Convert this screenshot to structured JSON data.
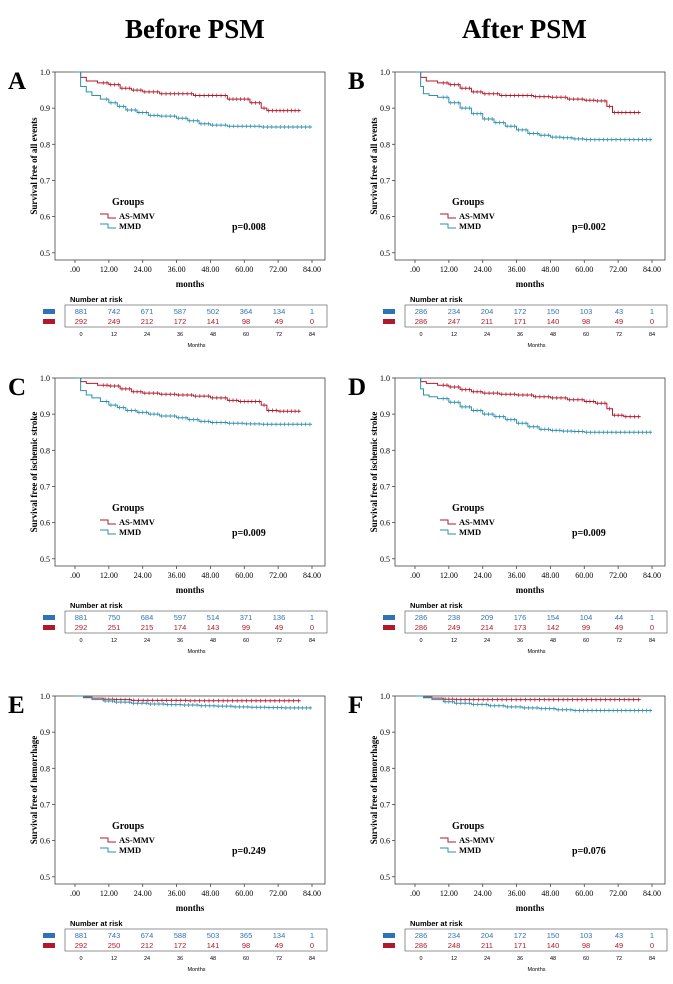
{
  "headers": {
    "before": "Before PSM",
    "after": "After PSM"
  },
  "colors": {
    "as_mmv": "#b2182b",
    "mmd": "#2e8fae",
    "risk_blue": "#2f73b7",
    "risk_red": "#b2182b"
  },
  "risk_table": {
    "title": "Number at risk",
    "xlabel": "Months",
    "times": [
      "0",
      "12",
      "24",
      "36",
      "48",
      "60",
      "72",
      "84"
    ]
  },
  "chart_data": [
    {
      "panel": "A",
      "type": "line",
      "ylabel": "Survival free of all events",
      "xlabel": "months",
      "xticks": [
        ".00",
        "12.00",
        "24.00",
        "36.00",
        "48.00",
        "60.00",
        "72.00",
        "84.00"
      ],
      "yticks": [
        "0.5",
        "0.6",
        "0.7",
        "0.8",
        "0.9",
        "1.0"
      ],
      "ylim": [
        0.48,
        1.0
      ],
      "xlim": [
        0,
        84
      ],
      "legend_title": "Groups",
      "pvalue": "p=0.008",
      "series": [
        {
          "name": "AS-MMV",
          "color": "#b2182b",
          "x": [
            0,
            2,
            4,
            8,
            12,
            16,
            20,
            24,
            30,
            36,
            42,
            48,
            54,
            58,
            62,
            66,
            68,
            72,
            76,
            80
          ],
          "y": [
            1.0,
            0.985,
            0.975,
            0.97,
            0.965,
            0.955,
            0.95,
            0.945,
            0.94,
            0.94,
            0.935,
            0.935,
            0.925,
            0.925,
            0.915,
            0.9,
            0.893,
            0.893,
            0.893,
            0.893
          ]
        },
        {
          "name": "MMD",
          "color": "#2e8fae",
          "x": [
            0,
            2,
            4,
            6,
            9,
            12,
            15,
            18,
            22,
            26,
            30,
            36,
            40,
            44,
            48,
            54,
            60,
            66,
            72,
            78,
            84
          ],
          "y": [
            1.0,
            0.96,
            0.945,
            0.935,
            0.925,
            0.915,
            0.905,
            0.895,
            0.888,
            0.88,
            0.878,
            0.872,
            0.865,
            0.857,
            0.853,
            0.85,
            0.85,
            0.848,
            0.848,
            0.848,
            0.848
          ]
        }
      ],
      "risk": {
        "blue": [
          "881",
          "742",
          "671",
          "587",
          "502",
          "364",
          "134",
          "1"
        ],
        "red": [
          "292",
          "249",
          "212",
          "172",
          "141",
          "98",
          "49",
          "0"
        ]
      }
    },
    {
      "panel": "B",
      "type": "line",
      "ylabel": "Survival free of all events",
      "xlabel": "months",
      "xticks": [
        ".00",
        "12.00",
        "24.00",
        "36.00",
        "48.00",
        "60.00",
        "72.00",
        "84.00"
      ],
      "yticks": [
        "0.5",
        "0.6",
        "0.7",
        "0.8",
        "0.9",
        "1.0"
      ],
      "ylim": [
        0.48,
        1.0
      ],
      "xlim": [
        0,
        84
      ],
      "legend_title": "Groups",
      "pvalue": "p=0.002",
      "series": [
        {
          "name": "AS-MMV",
          "color": "#b2182b",
          "x": [
            0,
            2,
            4,
            8,
            12,
            16,
            20,
            24,
            30,
            36,
            42,
            48,
            54,
            60,
            64,
            68,
            70,
            74,
            80
          ],
          "y": [
            1.0,
            0.985,
            0.975,
            0.97,
            0.965,
            0.955,
            0.945,
            0.94,
            0.935,
            0.935,
            0.932,
            0.93,
            0.925,
            0.922,
            0.92,
            0.905,
            0.888,
            0.888,
            0.888
          ]
        },
        {
          "name": "MMD",
          "color": "#2e8fae",
          "x": [
            0,
            2,
            3,
            5,
            8,
            12,
            16,
            20,
            24,
            28,
            32,
            36,
            40,
            44,
            48,
            52,
            56,
            60,
            66,
            72,
            80,
            84
          ],
          "y": [
            1.0,
            0.96,
            0.94,
            0.935,
            0.93,
            0.915,
            0.9,
            0.885,
            0.87,
            0.86,
            0.85,
            0.84,
            0.83,
            0.825,
            0.82,
            0.818,
            0.815,
            0.813,
            0.813,
            0.813,
            0.813,
            0.813
          ]
        }
      ],
      "risk": {
        "blue": [
          "286",
          "234",
          "204",
          "172",
          "150",
          "103",
          "43",
          "1"
        ],
        "red": [
          "286",
          "247",
          "211",
          "171",
          "140",
          "98",
          "49",
          "0"
        ]
      }
    },
    {
      "panel": "C",
      "type": "line",
      "ylabel": "Survival free of ischemic stroke",
      "xlabel": "months",
      "xticks": [
        ".00",
        "12.00",
        "24.00",
        "36.00",
        "48.00",
        "60.00",
        "72.00",
        "84.00"
      ],
      "yticks": [
        "0.5",
        "0.6",
        "0.7",
        "0.8",
        "0.9",
        "1.0"
      ],
      "ylim": [
        0.48,
        1.0
      ],
      "xlim": [
        0,
        84
      ],
      "legend_title": "Groups",
      "pvalue": "p=0.009",
      "series": [
        {
          "name": "AS-MMV",
          "color": "#b2182b",
          "x": [
            0,
            2,
            4,
            8,
            12,
            16,
            20,
            24,
            30,
            36,
            42,
            48,
            54,
            58,
            62,
            66,
            68,
            72,
            76,
            80
          ],
          "y": [
            1.0,
            0.99,
            0.985,
            0.98,
            0.978,
            0.97,
            0.962,
            0.958,
            0.955,
            0.953,
            0.95,
            0.945,
            0.938,
            0.935,
            0.935,
            0.925,
            0.91,
            0.908,
            0.908,
            0.908
          ]
        },
        {
          "name": "MMD",
          "color": "#2e8fae",
          "x": [
            0,
            2,
            4,
            6,
            9,
            12,
            15,
            18,
            22,
            26,
            30,
            36,
            40,
            44,
            48,
            54,
            60,
            66,
            72,
            78,
            84
          ],
          "y": [
            1.0,
            0.965,
            0.953,
            0.945,
            0.935,
            0.925,
            0.918,
            0.91,
            0.905,
            0.9,
            0.895,
            0.89,
            0.885,
            0.88,
            0.877,
            0.875,
            0.873,
            0.872,
            0.872,
            0.872,
            0.872
          ]
        }
      ],
      "risk": {
        "blue": [
          "881",
          "750",
          "684",
          "597",
          "514",
          "371",
          "136",
          "1"
        ],
        "red": [
          "292",
          "251",
          "215",
          "174",
          "143",
          "99",
          "49",
          "0"
        ]
      }
    },
    {
      "panel": "D",
      "type": "line",
      "ylabel": "Survival free of ischemic stroke",
      "xlabel": "months",
      "xticks": [
        ".00",
        "12.00",
        "24.00",
        "36.00",
        "48.00",
        "60.00",
        "72.00",
        "84.00"
      ],
      "yticks": [
        "0.5",
        "0.6",
        "0.7",
        "0.8",
        "0.9",
        "1.0"
      ],
      "ylim": [
        0.48,
        1.0
      ],
      "xlim": [
        0,
        84
      ],
      "legend_title": "Groups",
      "pvalue": "p=0.009",
      "series": [
        {
          "name": "AS-MMV",
          "color": "#b2182b",
          "x": [
            0,
            2,
            4,
            8,
            12,
            16,
            20,
            24,
            30,
            36,
            42,
            48,
            54,
            60,
            64,
            68,
            70,
            74,
            80
          ],
          "y": [
            1.0,
            0.99,
            0.985,
            0.98,
            0.975,
            0.968,
            0.962,
            0.958,
            0.955,
            0.953,
            0.948,
            0.945,
            0.94,
            0.935,
            0.93,
            0.915,
            0.897,
            0.893,
            0.893
          ]
        },
        {
          "name": "MMD",
          "color": "#2e8fae",
          "x": [
            0,
            2,
            3,
            5,
            8,
            12,
            16,
            20,
            24,
            28,
            32,
            36,
            40,
            44,
            48,
            52,
            56,
            60,
            66,
            72,
            80,
            84
          ],
          "y": [
            1.0,
            0.97,
            0.953,
            0.948,
            0.943,
            0.933,
            0.92,
            0.91,
            0.9,
            0.893,
            0.885,
            0.875,
            0.865,
            0.858,
            0.855,
            0.853,
            0.852,
            0.85,
            0.85,
            0.85,
            0.85,
            0.85
          ]
        }
      ],
      "risk": {
        "blue": [
          "286",
          "238",
          "209",
          "176",
          "154",
          "104",
          "44",
          "1"
        ],
        "red": [
          "286",
          "249",
          "214",
          "173",
          "142",
          "99",
          "49",
          "0"
        ]
      }
    },
    {
      "panel": "E",
      "type": "line",
      "ylabel": "Survival free of hemorrhage",
      "xlabel": "months",
      "xticks": [
        ".00",
        "12.00",
        "24.00",
        "36.00",
        "48.00",
        "60.00",
        "72.00",
        "84.00"
      ],
      "yticks": [
        "0.5",
        "0.6",
        "0.7",
        "0.8",
        "0.9",
        "1.0"
      ],
      "ylim": [
        0.48,
        1.0
      ],
      "xlim": [
        0,
        84
      ],
      "legend_title": "Groups",
      "pvalue": "p=0.249",
      "series": [
        {
          "name": "AS-MMV",
          "color": "#b2182b",
          "x": [
            0,
            3,
            6,
            10,
            14,
            20,
            30,
            40,
            50,
            60,
            70,
            80
          ],
          "y": [
            1.0,
            0.997,
            0.994,
            0.991,
            0.99,
            0.988,
            0.988,
            0.987,
            0.987,
            0.987,
            0.987,
            0.987
          ]
        },
        {
          "name": "MMD",
          "color": "#2e8fae",
          "x": [
            0,
            3,
            6,
            10,
            14,
            20,
            26,
            32,
            38,
            44,
            50,
            56,
            62,
            68,
            74,
            80,
            84
          ],
          "y": [
            1.0,
            0.995,
            0.99,
            0.986,
            0.983,
            0.98,
            0.978,
            0.976,
            0.975,
            0.973,
            0.972,
            0.97,
            0.969,
            0.968,
            0.967,
            0.967,
            0.967
          ]
        }
      ],
      "risk": {
        "blue": [
          "881",
          "743",
          "674",
          "588",
          "503",
          "365",
          "134",
          "1"
        ],
        "red": [
          "292",
          "250",
          "212",
          "172",
          "141",
          "98",
          "49",
          "0"
        ]
      }
    },
    {
      "panel": "F",
      "type": "line",
      "ylabel": "Survival free of hemorrhage",
      "xlabel": "months",
      "xticks": [
        ".00",
        "12.00",
        "24.00",
        "36.00",
        "48.00",
        "60.00",
        "72.00",
        "84.00"
      ],
      "yticks": [
        "0.5",
        "0.6",
        "0.7",
        "0.8",
        "0.9",
        "1.0"
      ],
      "ylim": [
        0.48,
        1.0
      ],
      "xlim": [
        0,
        84
      ],
      "legend_title": "Groups",
      "pvalue": "p=0.076",
      "series": [
        {
          "name": "AS-MMV",
          "color": "#b2182b",
          "x": [
            0,
            3,
            6,
            10,
            14,
            20,
            30,
            40,
            50,
            60,
            70,
            80
          ],
          "y": [
            1.0,
            0.997,
            0.994,
            0.991,
            0.99,
            0.99,
            0.99,
            0.99,
            0.99,
            0.99,
            0.99,
            0.99
          ]
        },
        {
          "name": "MMD",
          "color": "#2e8fae",
          "x": [
            0,
            3,
            6,
            10,
            14,
            20,
            26,
            32,
            38,
            44,
            50,
            56,
            62,
            68,
            74,
            80,
            84
          ],
          "y": [
            1.0,
            0.995,
            0.99,
            0.984,
            0.98,
            0.977,
            0.973,
            0.97,
            0.967,
            0.965,
            0.962,
            0.96,
            0.96,
            0.96,
            0.96,
            0.96,
            0.96
          ]
        }
      ],
      "risk": {
        "blue": [
          "286",
          "234",
          "204",
          "172",
          "150",
          "103",
          "43",
          "1"
        ],
        "red": [
          "286",
          "248",
          "211",
          "171",
          "140",
          "98",
          "49",
          "0"
        ]
      }
    }
  ]
}
